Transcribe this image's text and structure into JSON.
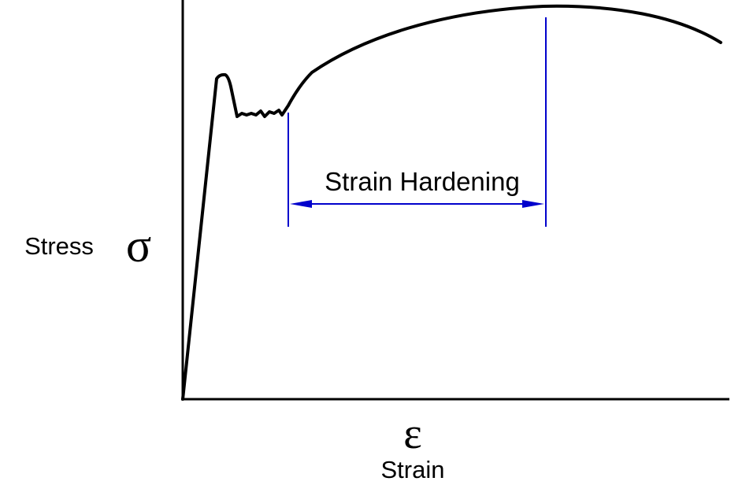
{
  "y_axis": {
    "label": "Stress",
    "symbol": "σ"
  },
  "x_axis": {
    "label": "Strain",
    "symbol": "ε"
  },
  "annotation": {
    "label": "Strain Hardening"
  },
  "colors": {
    "curve": "#000000",
    "axes": "#000000",
    "annotation": "#0000cc"
  }
}
